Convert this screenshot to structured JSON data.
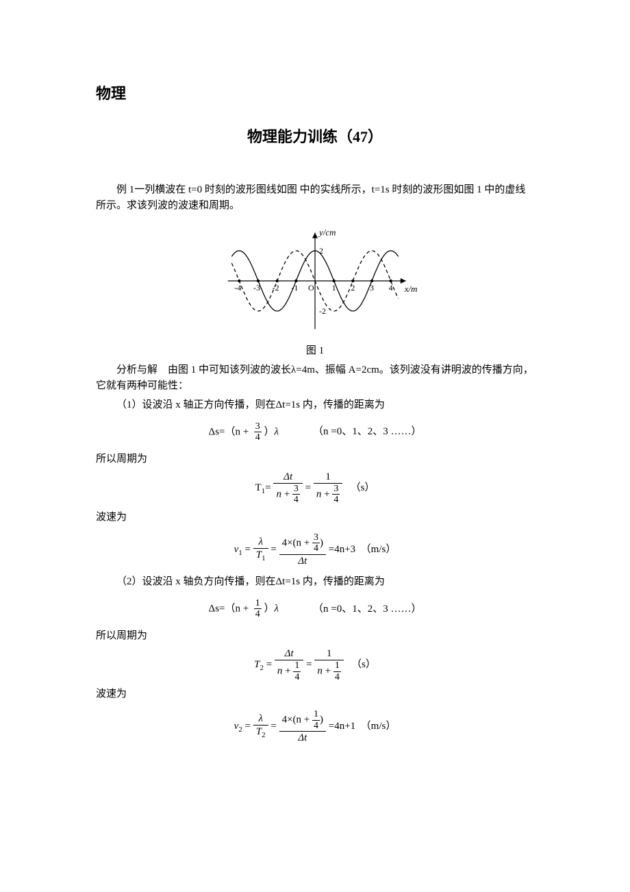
{
  "header": "物理",
  "title": "物理能力训练（47）",
  "example": {
    "intro": "例 1一列横波在 t=0 时刻的波形图线如图  中的实线所示，t=1s 时刻的波形图如图 1 中的虚线所示。求该列波的波速和周期。",
    "figure": {
      "caption": "图 1",
      "x_label": "x/m",
      "y_label": "y/cm",
      "x_ticks": [
        "-4",
        "-3",
        "-2",
        "-1",
        "O",
        "1",
        "2",
        "3",
        "4"
      ],
      "y_ticks": [
        "2",
        "-2"
      ],
      "colors": {
        "background": "#ffffff",
        "axis": "#000000",
        "solid_curve": "#000000",
        "dashed_curve": "#000000"
      },
      "solid_amplitude_cm": 2,
      "wavelength_m": 4,
      "viewbox_w": 300,
      "viewbox_h": 170
    },
    "analysis_intro": "分析与解　由图 1 中可知该列波的波长λ=4m、振幅 A=2cm。该列波没有讲明波的传播方向，它就有两种可能性：",
    "case1": {
      "statement": "（1）设波沿 x 轴正方向传播，则在Δt=1s 内，传播的距离为",
      "delta_s": {
        "lhs": "Δs=",
        "frac_num": "3",
        "frac_den": "4",
        "rhs": "（n +　　　）λ",
        "cond": "（n =0、1、2、3 ……）"
      },
      "period_label": "所以周期为",
      "period": {
        "lhs_var": "T",
        "lhs_sub": "1",
        "mid_num": "Δt",
        "frac_n_num": "3",
        "frac_n_den": "4",
        "rhs_num": "1",
        "unit": "（s）"
      },
      "speed_label": "波速为",
      "speed": {
        "lhs_var": "v",
        "lhs_sub": "1",
        "lambda": "λ",
        "T_sub": "1",
        "num_prefix": "4×(n +",
        "frac_num": "3",
        "frac_den": "4",
        "num_suffix": ")",
        "den": "Δt",
        "result": "=4n+3",
        "unit": "（m/s）"
      }
    },
    "case2": {
      "statement": "（2）设波沿 x 轴负方向传播，则在Δt=1s 内，传播的距离为",
      "delta_s": {
        "lhs": "Δs=",
        "frac_num": "1",
        "frac_den": "4",
        "rhs": "（n +　　　）λ",
        "cond": "（n =0、1、2、3 ……）"
      },
      "period_label": "所以周期为",
      "period": {
        "lhs_var": "T",
        "lhs_sub": "2",
        "mid_num": "Δt",
        "frac_n_num": "1",
        "frac_n_den": "4",
        "rhs_num": "1",
        "unit": "（s）"
      },
      "speed_label": "波速为",
      "speed": {
        "lhs_var": "v",
        "lhs_sub": "2",
        "lambda": "λ",
        "T_sub": "2",
        "num_prefix": "4×(n +",
        "frac_num": "1",
        "frac_den": "4",
        "num_suffix": ")",
        "den": "Δt",
        "result": "=4n+1",
        "unit": "（m/s）"
      }
    }
  }
}
